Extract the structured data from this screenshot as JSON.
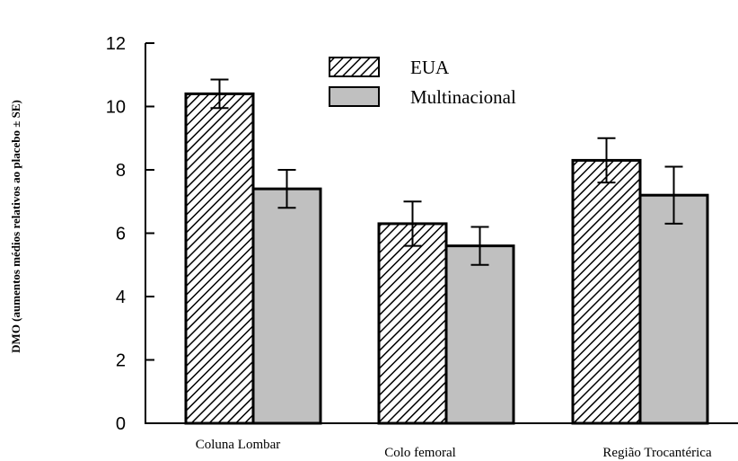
{
  "chart_data": {
    "type": "bar",
    "title": "",
    "xlabel": "",
    "ylabel": "DMO (aumentos médios relativos ao placebo ± SE)",
    "ylim": [
      0,
      12
    ],
    "yticks": [
      0,
      2,
      4,
      6,
      8,
      10,
      12
    ],
    "grid": false,
    "legend_position": "top-center",
    "categories": [
      "Coluna Lombar",
      "Colo femoral",
      "Região Trocantérica"
    ],
    "series": [
      {
        "name": "EUA",
        "pattern": "diagonal-hatch",
        "color": "#ffffff",
        "values": [
          10.4,
          6.3,
          8.3
        ],
        "errors": [
          0.45,
          0.7,
          0.7
        ]
      },
      {
        "name": "Multinacional",
        "pattern": "solid",
        "color": "#c0c0c0",
        "values": [
          7.4,
          5.6,
          7.2
        ],
        "errors": [
          0.6,
          0.6,
          0.9
        ]
      }
    ]
  }
}
